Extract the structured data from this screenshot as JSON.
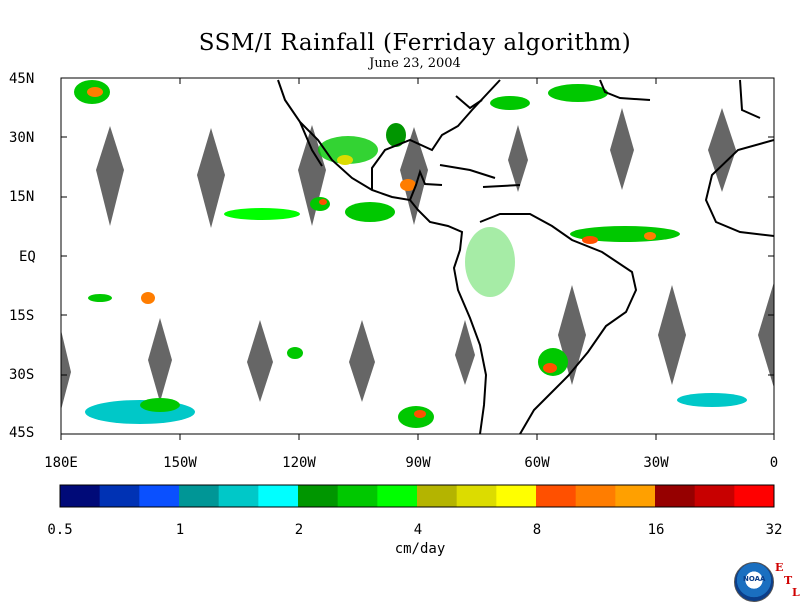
{
  "title": "SSM/I Rainfall (Ferriday algorithm)",
  "date": "June 23, 2004",
  "lat_labels": [
    "45N",
    "30N",
    "15N",
    "EQ",
    "15S",
    "30S",
    "45S"
  ],
  "lon_labels": [
    "180E",
    "150W",
    "120W",
    "90W",
    "60W",
    "30W",
    "0"
  ],
  "colorbar": {
    "tick_labels": [
      "0.5",
      "1",
      "2",
      "4",
      "8",
      "16",
      "32"
    ],
    "units": "cm/day",
    "colors": [
      "#000a78",
      "#0032b4",
      "#0a50ff",
      "#009696",
      "#00c8c8",
      "#00ffff",
      "#009600",
      "#00c800",
      "#00ff00",
      "#b4b400",
      "#dcdc00",
      "#ffff00",
      "#ff5000",
      "#ff7d00",
      "#ffa000",
      "#960000",
      "#c80000",
      "#ff0000"
    ]
  },
  "logo": {
    "text": "NOAA",
    "letters": [
      "E",
      "T",
      "L"
    ]
  }
}
